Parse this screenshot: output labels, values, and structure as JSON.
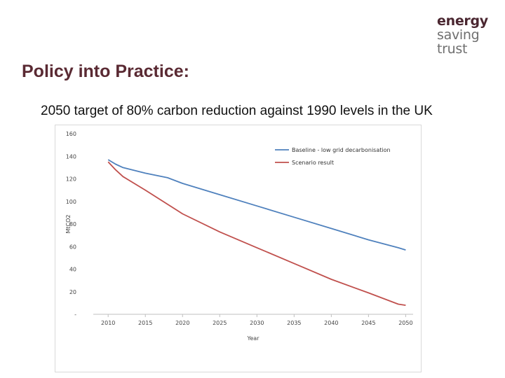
{
  "logo": {
    "line1": "energy",
    "line2": "saving",
    "line3": "trust"
  },
  "slide": {
    "title": "Policy into Practice:",
    "subtitle": "2050 target of 80% carbon reduction against 1990 levels in the UK"
  },
  "colors": {
    "title": "#5a2a33",
    "baseline": "#4f81bd",
    "scenario": "#c0504d"
  },
  "chart_data": {
    "type": "line",
    "xlabel": "Year",
    "ylabel": "MtCO2",
    "xlim": [
      2008,
      2051
    ],
    "ylim": [
      0,
      160
    ],
    "xticks": [
      2010,
      2015,
      2020,
      2025,
      2030,
      2035,
      2040,
      2045,
      2050
    ],
    "yticks": [
      0,
      20,
      40,
      60,
      80,
      100,
      120,
      140,
      160
    ],
    "ytick_labels": [
      "-",
      "20",
      "40",
      "60",
      "80",
      "100",
      "120",
      "140",
      "160"
    ],
    "grid": false,
    "legend_position": "top-right",
    "series": [
      {
        "name": "Baseline - low grid decarbonisation",
        "color": "#4f81bd",
        "x": [
          2010,
          2011,
          2012,
          2015,
          2018,
          2020,
          2025,
          2030,
          2035,
          2040,
          2045,
          2049,
          2050
        ],
        "y": [
          137,
          133,
          130,
          125,
          121,
          116,
          106,
          96,
          86,
          76,
          66,
          59,
          57
        ]
      },
      {
        "name": "Scenario result",
        "color": "#c0504d",
        "x": [
          2010,
          2011,
          2012,
          2015,
          2020,
          2025,
          2030,
          2035,
          2040,
          2045,
          2049,
          2050
        ],
        "y": [
          135,
          128,
          122,
          110,
          89,
          73,
          59,
          45,
          31,
          19,
          9,
          8
        ]
      }
    ]
  }
}
